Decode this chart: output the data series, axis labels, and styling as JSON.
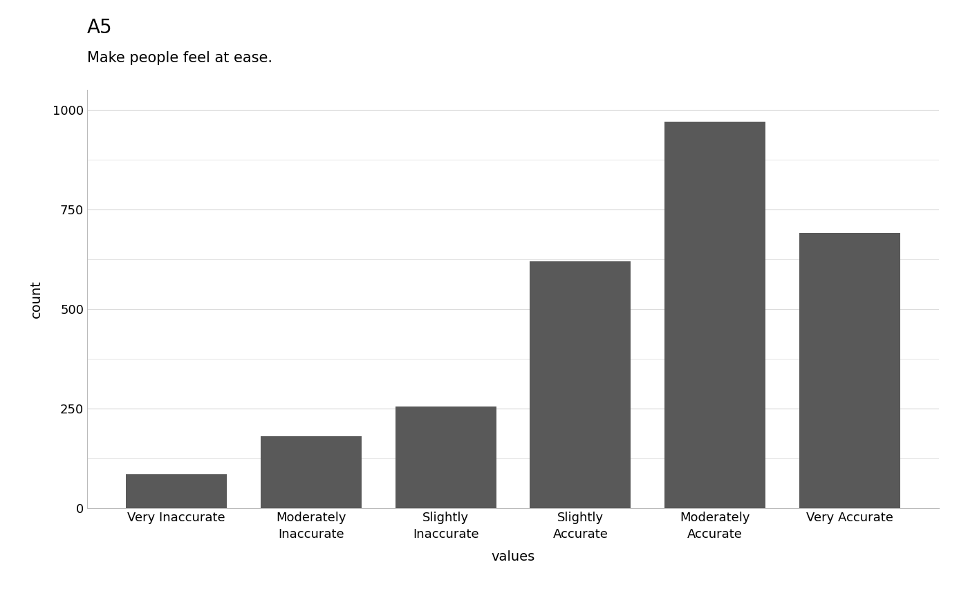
{
  "title": "A5",
  "subtitle": "Make people feel at ease.",
  "xlabel": "values",
  "ylabel": "count",
  "categories": [
    "Very Inaccurate",
    "Moderately\nInaccurate",
    "Slightly\nInaccurate",
    "Slightly\nAccurate",
    "Moderately\nAccurate",
    "Very Accurate"
  ],
  "values": [
    85,
    180,
    255,
    620,
    970,
    690
  ],
  "bar_color": "#595959",
  "ylim": [
    0,
    1050
  ],
  "yticks": [
    0,
    250,
    500,
    750,
    1000
  ],
  "background_color": "#ffffff",
  "grid_color": "#d9d9d9",
  "title_fontsize": 20,
  "subtitle_fontsize": 15,
  "axis_label_fontsize": 14,
  "tick_fontsize": 13,
  "bar_width": 0.75
}
